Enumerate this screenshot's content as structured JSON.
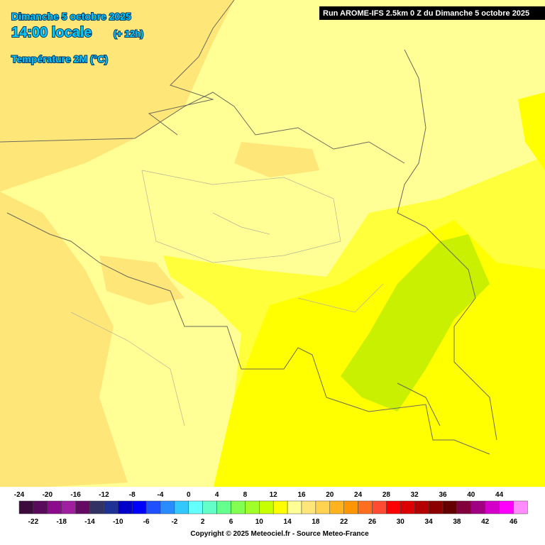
{
  "header": {
    "date": "Dimanche 5 octobre 2025",
    "time": "14:00 locale",
    "offset": "(+ 12h)",
    "parameter": "Température 2M (°C)",
    "run": "Run AROME-IFS 2.5km 0 Z du Dimanche 5 octobre 2025"
  },
  "legend": {
    "values": [
      -24,
      -22,
      -20,
      -18,
      -16,
      -14,
      -12,
      -10,
      -8,
      -6,
      -4,
      -2,
      0,
      2,
      4,
      6,
      8,
      10,
      12,
      14,
      16,
      18,
      20,
      22,
      24,
      26,
      28,
      30,
      32,
      34,
      36,
      38,
      40,
      42,
      44,
      46
    ],
    "colors": [
      "#3c0a3c",
      "#5a0a5a",
      "#8c0a8c",
      "#a01ea0",
      "#640a64",
      "#323264",
      "#1e3296",
      "#0000c8",
      "#0000ff",
      "#1e50ff",
      "#288cff",
      "#32c8ff",
      "#64ffff",
      "#64ffc8",
      "#64ff8c",
      "#82ff50",
      "#a0ff28",
      "#c8ff00",
      "#ffff00",
      "#ffff96",
      "#ffe678",
      "#ffd250",
      "#ffb41e",
      "#ff9600",
      "#ff6e1e",
      "#ff4b32",
      "#ff0000",
      "#dc0000",
      "#b40000",
      "#8c0000",
      "#640000",
      "#82003c",
      "#a00082",
      "#d200c8",
      "#ff00ff",
      "#ff8cff"
    ]
  },
  "footer": {
    "copyright": "Copyright © 2025 Meteociel.fr - Source Meteo-France"
  }
}
